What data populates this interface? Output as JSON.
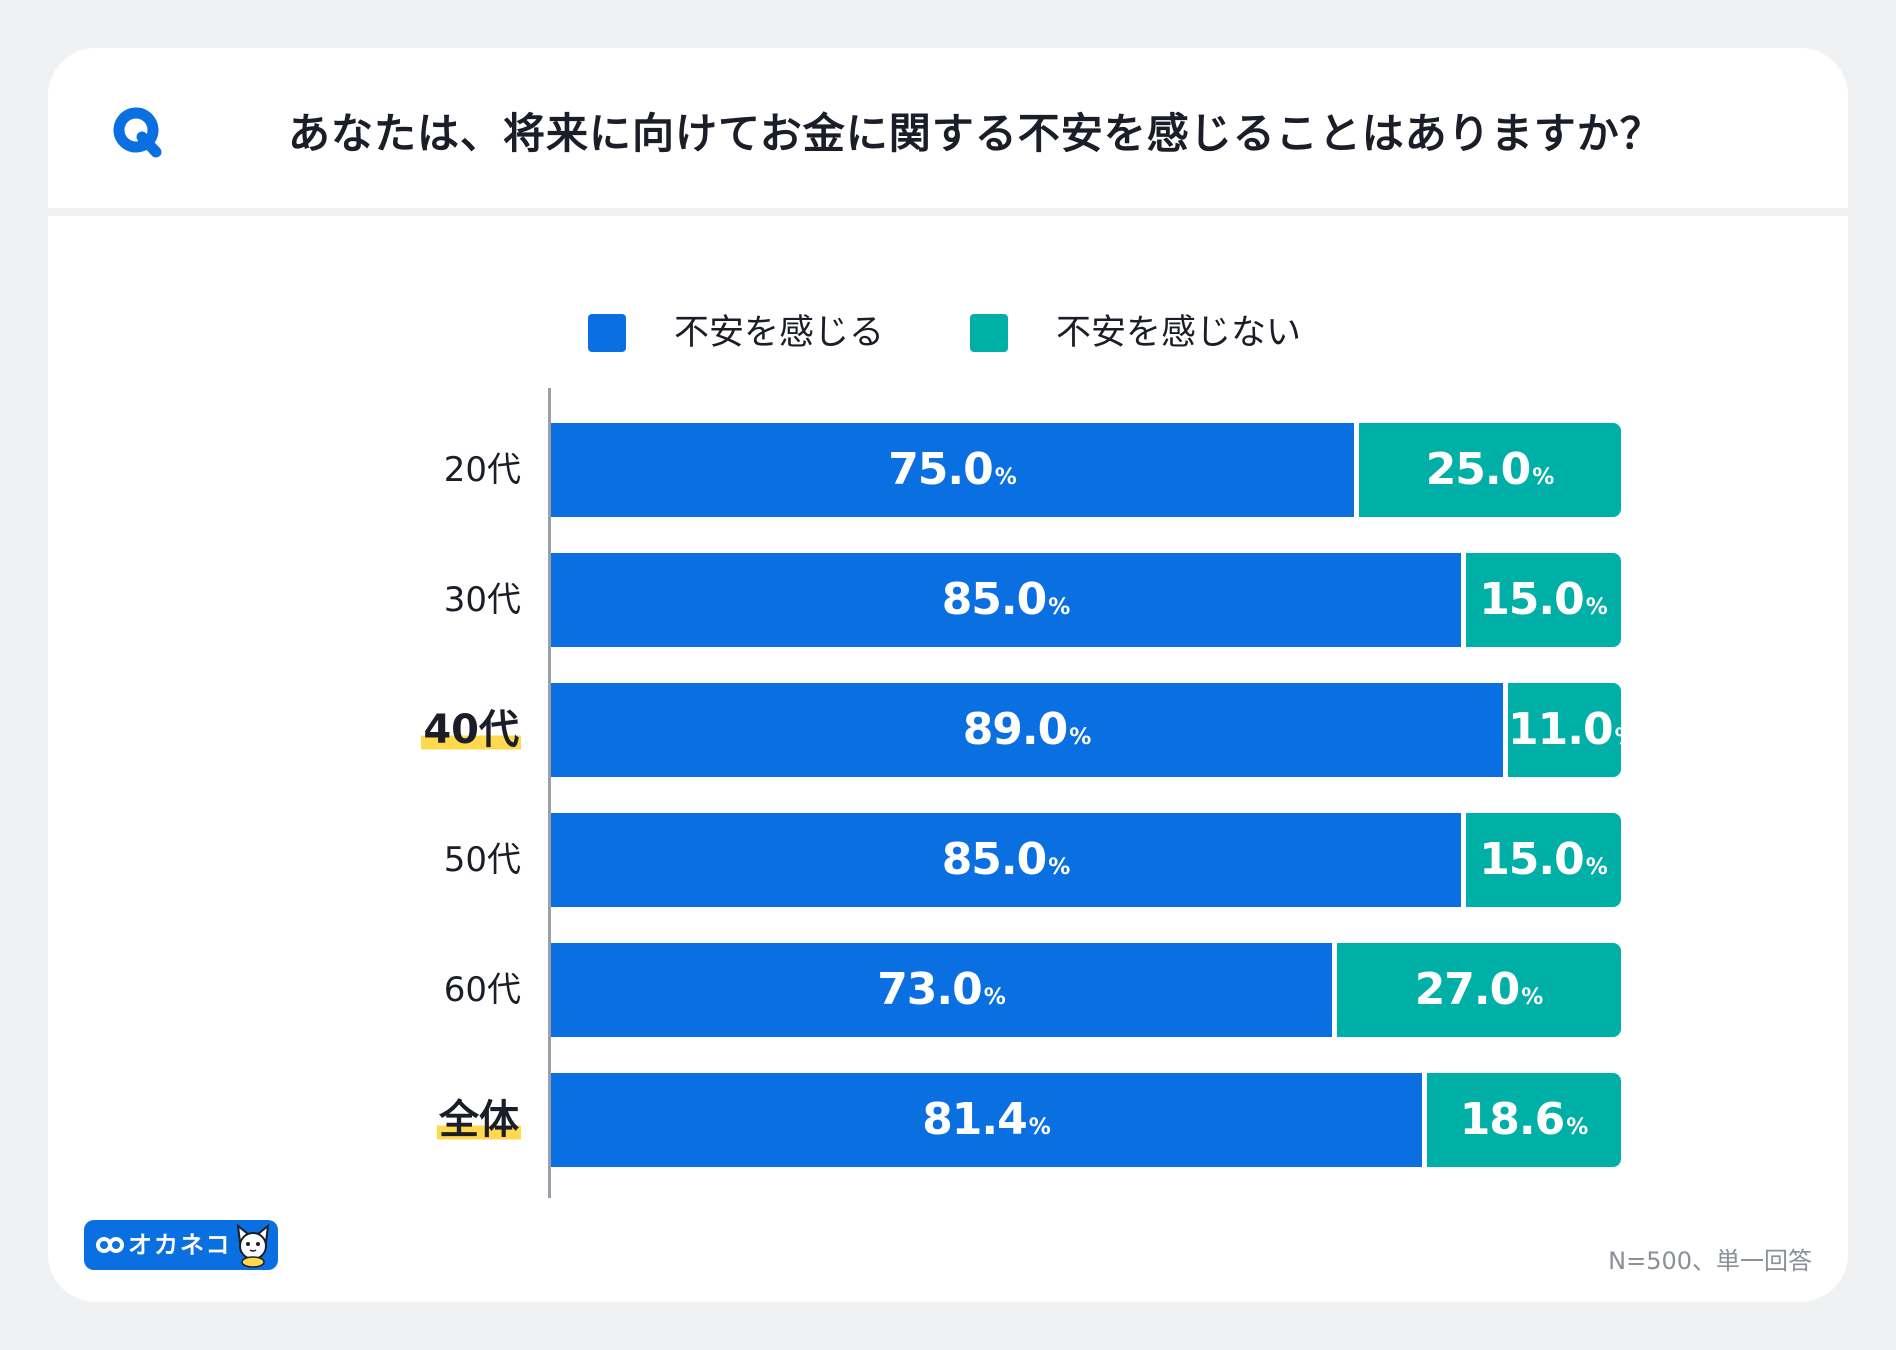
{
  "header": {
    "q_label": "Q",
    "question": "あなたは、将来に向けてお金に関する不安を感じることはありますか？"
  },
  "colors": {
    "series1": "#0a6fe0",
    "series2": "#00b0a6",
    "highlight": "#ffd84d"
  },
  "legend": [
    {
      "label": "不安を感じる",
      "color": "#0a6fe0"
    },
    {
      "label": "不安を感じない",
      "color": "#00b0a6"
    }
  ],
  "chart_data": {
    "type": "bar",
    "orientation": "horizontal",
    "stacked": true,
    "title": "あなたは、将来に向けてお金に関する不安を感じることはありますか？",
    "categories": [
      "20代",
      "30代",
      "40代",
      "50代",
      "60代",
      "全体"
    ],
    "emphasized": [
      "40代",
      "全体"
    ],
    "series": [
      {
        "name": "不安を感じる",
        "values": [
          75.0,
          85.0,
          89.0,
          85.0,
          73.0,
          81.4
        ]
      },
      {
        "name": "不安を感じない",
        "values": [
          25.0,
          15.0,
          11.0,
          15.0,
          27.0,
          18.6
        ]
      }
    ],
    "value_unit": "%",
    "xlim": [
      0,
      100
    ],
    "legend_position": "top-center"
  },
  "footer": {
    "logo_text": "オカネコ",
    "logo_icon": "infinity-icon",
    "mascot_icon": "cat-mascot-icon",
    "note": "N=500、単一回答"
  }
}
